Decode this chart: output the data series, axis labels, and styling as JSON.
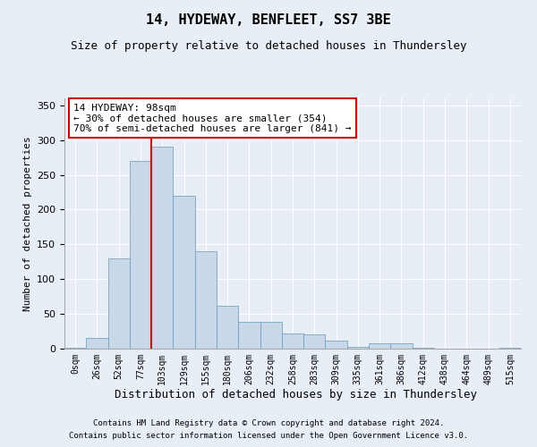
{
  "title1": "14, HYDEWAY, BENFLEET, SS7 3BE",
  "title2": "Size of property relative to detached houses in Thundersley",
  "xlabel": "Distribution of detached houses by size in Thundersley",
  "ylabel": "Number of detached properties",
  "bar_labels": [
    "0sqm",
    "26sqm",
    "52sqm",
    "77sqm",
    "103sqm",
    "129sqm",
    "155sqm",
    "180sqm",
    "206sqm",
    "232sqm",
    "258sqm",
    "283sqm",
    "309sqm",
    "335sqm",
    "361sqm",
    "386sqm",
    "412sqm",
    "438sqm",
    "464sqm",
    "489sqm",
    "515sqm"
  ],
  "bar_values": [
    1,
    15,
    130,
    270,
    290,
    220,
    140,
    62,
    38,
    38,
    22,
    20,
    12,
    2,
    8,
    8,
    1,
    0,
    0,
    0,
    1
  ],
  "bar_color": "#c8d8e8",
  "bar_edge_color": "#6699bb",
  "vline_x": 4.0,
  "vline_color": "#cc0000",
  "annotation_text": "14 HYDEWAY: 98sqm\n← 30% of detached houses are smaller (354)\n70% of semi-detached houses are larger (841) →",
  "annotation_box_color": "#ffffff",
  "annotation_box_edge": "#cc0000",
  "ylim": [
    0,
    360
  ],
  "yticks": [
    0,
    50,
    100,
    150,
    200,
    250,
    300,
    350
  ],
  "footer1": "Contains HM Land Registry data © Crown copyright and database right 2024.",
  "footer2": "Contains public sector information licensed under the Open Government Licence v3.0.",
  "bg_color": "#e8eef5",
  "plot_bg_color": "#e8eef5"
}
